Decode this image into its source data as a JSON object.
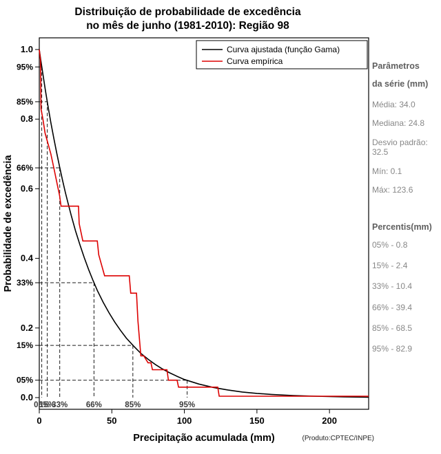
{
  "title": {
    "line1": "Distribuição de probabilidade de excedência",
    "line2": "no mês de junho (1981-2010): Região 98"
  },
  "footer": {
    "product": "(Produto:CPTEC/INPE)"
  },
  "panel": {
    "heading1": "Parâmetros",
    "heading2": "da série (mm)",
    "stats": [
      "Média: 34.0",
      "Mediana: 24.8",
      "Desvio padrão: 32.5",
      "Mín: 0.1",
      "Máx: 123.6"
    ],
    "percentis_heading": "Percentis(mm)",
    "percentis": [
      "05% - 0.8",
      "15% - 2.4",
      "33% - 10.4",
      "66% - 39.4",
      "85% - 68.5",
      "95% - 82.9"
    ]
  },
  "chart_data": {
    "type": "line",
    "title": "Distribuição de probabilidade de excedência no mês de junho (1981-2010): Região 98",
    "xlabel": "Precipitação acumulada (mm)",
    "ylabel": "Probabilidade de excedência",
    "xlim": [
      0,
      227
    ],
    "ylim": [
      0,
      1
    ],
    "x_ticks": [
      0,
      50,
      100,
      150,
      200
    ],
    "y_ticks": [
      0,
      0.2,
      0.4,
      0.6,
      0.8,
      1.0
    ],
    "grid": false,
    "legend_position": "top-inside",
    "series": [
      {
        "name": "Curva ajustada (função Gama)",
        "color": "#000000",
        "x": [
          0,
          1,
          2,
          3,
          4,
          5,
          6,
          8,
          10,
          12,
          14,
          16,
          18,
          20,
          22,
          25,
          28,
          31,
          34,
          37,
          40,
          44,
          48,
          52,
          56,
          60,
          65,
          70,
          75,
          80,
          85,
          90,
          95,
          100,
          110,
          120,
          130,
          140,
          150,
          160,
          175,
          190,
          210,
          227
        ],
        "y": [
          1,
          0.971,
          0.943,
          0.916,
          0.889,
          0.863,
          0.838,
          0.79,
          0.745,
          0.703,
          0.663,
          0.625,
          0.589,
          0.556,
          0.524,
          0.479,
          0.439,
          0.402,
          0.368,
          0.337,
          0.308,
          0.274,
          0.244,
          0.217,
          0.193,
          0.171,
          0.148,
          0.127,
          0.11,
          0.095,
          0.082,
          0.071,
          0.061,
          0.052,
          0.039,
          0.029,
          0.022,
          0.016,
          0.012,
          0.009,
          0.006,
          0.004,
          0.002,
          0.001
        ]
      },
      {
        "name": "Curva empírica",
        "color": "#dd0000",
        "x": [
          0,
          0.8,
          1.2,
          2.5,
          4,
          6,
          8,
          10,
          12,
          14,
          15,
          27,
          27.5,
          30,
          40,
          41,
          45,
          46,
          62,
          63,
          67,
          68,
          70,
          72,
          75,
          77,
          78,
          88,
          89,
          95,
          96,
          123,
          124,
          227
        ],
        "y": [
          1.0,
          0.97,
          0.83,
          0.8,
          0.76,
          0.73,
          0.7,
          0.66,
          0.62,
          0.58,
          0.55,
          0.55,
          0.5,
          0.45,
          0.45,
          0.41,
          0.35,
          0.35,
          0.35,
          0.3,
          0.3,
          0.22,
          0.12,
          0.12,
          0.1,
          0.1,
          0.08,
          0.08,
          0.05,
          0.05,
          0.03,
          0.03,
          0.004,
          0.004
        ]
      }
    ],
    "guides": [
      {
        "prob": 0.95,
        "x": 1.7,
        "xlabel": "05%",
        "ylabel": "95%"
      },
      {
        "prob": 0.85,
        "x": 5.5,
        "xlabel": "15%",
        "ylabel": "85%"
      },
      {
        "prob": 0.66,
        "x": 14.1,
        "xlabel": "33%",
        "ylabel": "66%"
      },
      {
        "prob": 0.33,
        "x": 37.7,
        "xlabel": "66%",
        "ylabel": "33%"
      },
      {
        "prob": 0.15,
        "x": 64.5,
        "xlabel": "85%",
        "ylabel": "15%"
      },
      {
        "prob": 0.05,
        "x": 101.9,
        "xlabel": "95%",
        "ylabel": "05%"
      }
    ]
  }
}
